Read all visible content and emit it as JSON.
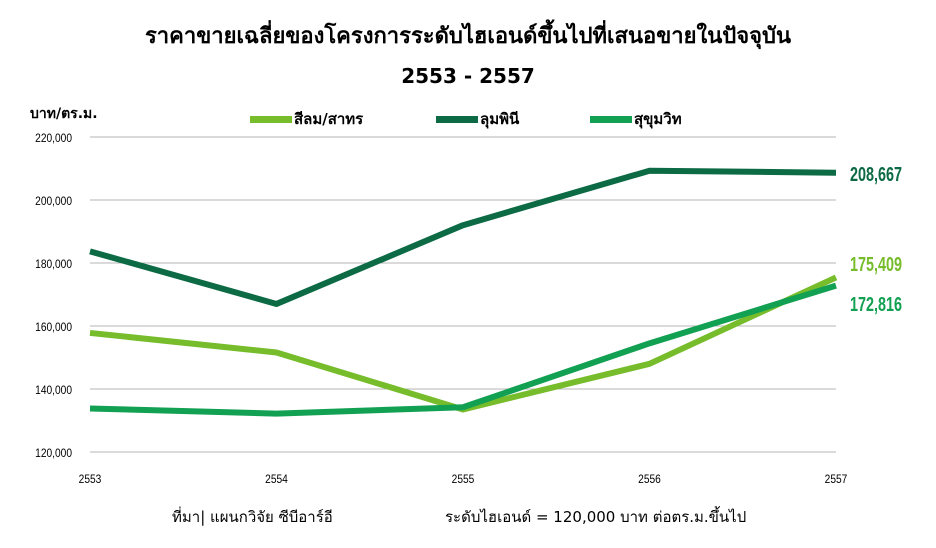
{
  "header": {
    "title": "ราคาขายเฉลี่ยของโครงการระดับไฮเอนด์ขึ้นไปที่เสนอขายในปัจจุบัน",
    "subtitle": "2553 - 2557",
    "y_unit": "บาท/ตร.ม."
  },
  "colors": {
    "silom": "#76bc2b",
    "lumpini": "#0c6a44",
    "sukhumvit": "#12a052",
    "grid": "#b4b4b4",
    "axis_text": "#000000"
  },
  "chart_data": {
    "type": "line",
    "title": "ราคาขายเฉลี่ยของโครงการระดับไฮเอนด์ขึ้นไปที่เสนอขายในปัจจุบัน",
    "subtitle": "2553 - 2557",
    "ylabel": "บาท/ตร.ม.",
    "xlabel": "",
    "x": [
      "2553",
      "2554",
      "2555",
      "2556",
      "2557"
    ],
    "ylim": [
      120000,
      220000
    ],
    "yticks": [
      "120,000",
      "140,000",
      "160,000",
      "180,000",
      "200,000",
      "220,000"
    ],
    "grid": "horizontal",
    "legend_position": "top",
    "series": [
      {
        "name": "สีลม/สาทร",
        "color_key": "silom",
        "values": [
          157800,
          151600,
          133500,
          148000,
          175409
        ],
        "end_label": "175,409"
      },
      {
        "name": "ลุมพินี",
        "color_key": "lumpini",
        "values": [
          183700,
          167000,
          192000,
          209300,
          208667
        ],
        "end_label": "208,667"
      },
      {
        "name": "สุขุมวิท",
        "color_key": "sukhumvit",
        "values": [
          133800,
          132200,
          134200,
          154500,
          172816
        ],
        "end_label": "172,816"
      }
    ]
  },
  "footer": {
    "source": "ที่มา| แผนกวิจัย ซีบีอาร์อี",
    "note": "ระดับไฮเอนด์ = 120,000 บาท ต่อตร.ม.ขึ้นไป"
  }
}
